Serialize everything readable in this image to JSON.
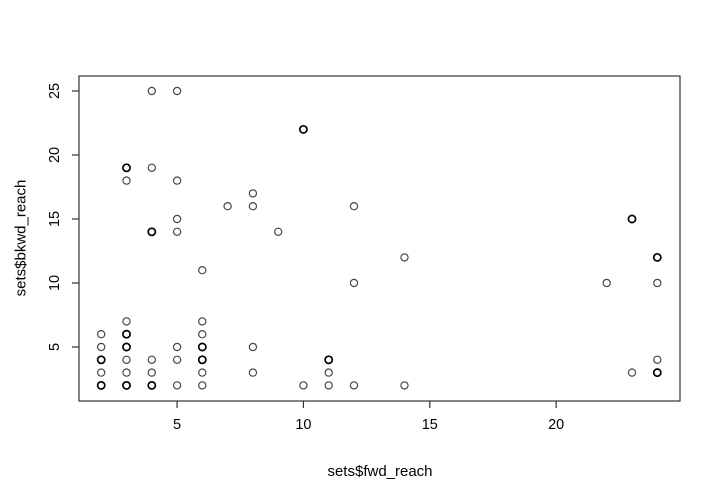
{
  "chart_data": {
    "type": "scatter",
    "title": "",
    "xlabel": "sets$fwd_reach",
    "ylabel": "sets$bkwd_reach",
    "xlim": [
      1.12,
      24.9
    ],
    "ylim": [
      0.78,
      26.17
    ],
    "x_ticks": [
      5,
      10,
      15,
      20
    ],
    "y_ticks": [
      5,
      10,
      15,
      20,
      25
    ],
    "grid": false,
    "legend": false,
    "marker": "open-circle",
    "colors": {
      "background": "#ffffff",
      "points": "#000000",
      "box": "#333333",
      "ticks": "#333333"
    },
    "points": [
      {
        "x": 4,
        "y": 25
      },
      {
        "x": 5,
        "y": 25
      },
      {
        "x": 10,
        "y": 22,
        "bold": true
      },
      {
        "x": 3,
        "y": 19,
        "bold": true
      },
      {
        "x": 4,
        "y": 19
      },
      {
        "x": 3,
        "y": 18
      },
      {
        "x": 5,
        "y": 18
      },
      {
        "x": 8,
        "y": 17
      },
      {
        "x": 7,
        "y": 16
      },
      {
        "x": 8,
        "y": 16
      },
      {
        "x": 12,
        "y": 16
      },
      {
        "x": 5,
        "y": 15
      },
      {
        "x": 23,
        "y": 15,
        "bold": true
      },
      {
        "x": 4,
        "y": 14,
        "bold": true
      },
      {
        "x": 5,
        "y": 14
      },
      {
        "x": 9,
        "y": 14
      },
      {
        "x": 14,
        "y": 12
      },
      {
        "x": 24,
        "y": 12,
        "bold": true
      },
      {
        "x": 6,
        "y": 11
      },
      {
        "x": 12,
        "y": 10
      },
      {
        "x": 22,
        "y": 10
      },
      {
        "x": 24,
        "y": 10
      },
      {
        "x": 3,
        "y": 7
      },
      {
        "x": 6,
        "y": 7
      },
      {
        "x": 2,
        "y": 6
      },
      {
        "x": 3,
        "y": 6,
        "bold": true
      },
      {
        "x": 6,
        "y": 6
      },
      {
        "x": 2,
        "y": 5
      },
      {
        "x": 3,
        "y": 5,
        "bold": true
      },
      {
        "x": 5,
        "y": 5
      },
      {
        "x": 6,
        "y": 5,
        "bold": true
      },
      {
        "x": 8,
        "y": 5
      },
      {
        "x": 2,
        "y": 4,
        "bold": true
      },
      {
        "x": 3,
        "y": 4
      },
      {
        "x": 4,
        "y": 4
      },
      {
        "x": 5,
        "y": 4
      },
      {
        "x": 6,
        "y": 4,
        "bold": true
      },
      {
        "x": 11,
        "y": 4,
        "bold": true
      },
      {
        "x": 24,
        "y": 4
      },
      {
        "x": 2,
        "y": 3
      },
      {
        "x": 3,
        "y": 3
      },
      {
        "x": 4,
        "y": 3
      },
      {
        "x": 6,
        "y": 3
      },
      {
        "x": 8,
        "y": 3
      },
      {
        "x": 11,
        "y": 3
      },
      {
        "x": 23,
        "y": 3
      },
      {
        "x": 24,
        "y": 3,
        "bold": true
      },
      {
        "x": 2,
        "y": 2,
        "bold": true
      },
      {
        "x": 3,
        "y": 2,
        "bold": true
      },
      {
        "x": 4,
        "y": 2,
        "bold": true
      },
      {
        "x": 5,
        "y": 2
      },
      {
        "x": 6,
        "y": 2
      },
      {
        "x": 10,
        "y": 2
      },
      {
        "x": 11,
        "y": 2
      },
      {
        "x": 12,
        "y": 2
      },
      {
        "x": 14,
        "y": 2
      }
    ]
  }
}
